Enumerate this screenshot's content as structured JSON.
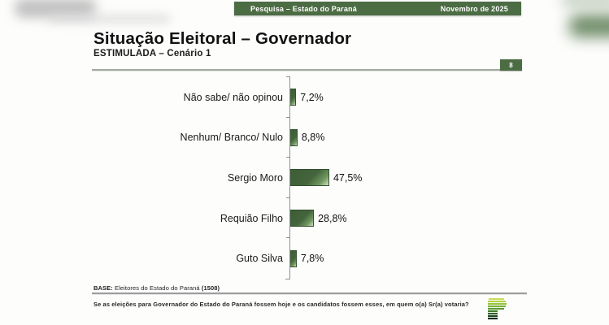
{
  "top_bar": {
    "left_text": "Pesquisa – Estado do Paraná",
    "right_text": "Novembro de 2025"
  },
  "header": {
    "title": "Situação Eleitoral – Governador",
    "subtitle": "ESTIMULADA – Cenário 1",
    "page_number": "8"
  },
  "footer": {
    "base_label": "BASE:",
    "base_text": " Eleitores do Estado do Paraná ",
    "base_count": "(1508)",
    "question": "Se as eleições para Governador do Estado do Paraná fossem hoje e os candidatos fossem esses, em quem o(a) Sr(a) votaria?",
    "logo_icon": "green-p-stripes-logo"
  },
  "colors": {
    "accent_green": "#4c6c44",
    "bar_dark_green": "#3d5c37",
    "bar_light_green": "#dde9d4",
    "axis_gray": "#909090"
  },
  "chart_data": {
    "type": "bar",
    "orientation": "horizontal",
    "title": "Situação Eleitoral – Governador",
    "subtitle": "ESTIMULADA – Cenário 1",
    "categories": [
      "Não sabe/ não opinou",
      "Nenhum/ Branco/ Nulo",
      "Sergio Moro",
      "Requião Filho",
      "Guto Silva"
    ],
    "values": [
      7.2,
      8.8,
      47.5,
      28.8,
      7.8
    ],
    "value_labels": [
      "7,2%",
      "8,8%",
      "47,5%",
      "28,8%",
      "7,8%"
    ],
    "unit": "%",
    "xlim": [
      0,
      50
    ],
    "grid": false,
    "legend": false,
    "bar_color": "dark green gradient"
  }
}
